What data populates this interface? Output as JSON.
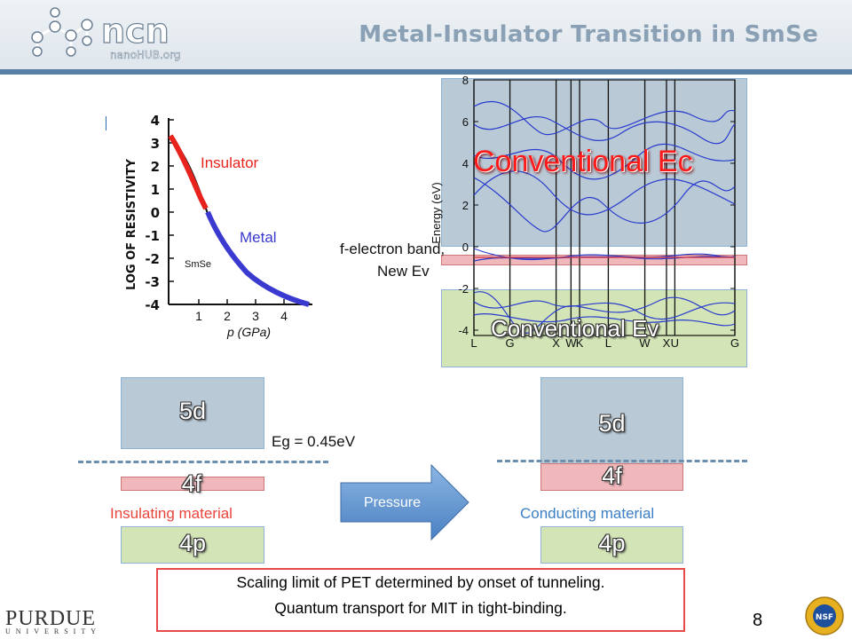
{
  "header": {
    "logo_text": "ncn",
    "logo_subtext": "nanoHUB.org",
    "title": "Metal-Insulator Transition in SmSe"
  },
  "resistivity_plot": {
    "ylabel": "LOG OF RESISTIVITY",
    "xlabel": "p (GPa)",
    "y_ticks": [
      "4",
      "3",
      "2",
      "1",
      "0",
      "-1",
      "-2",
      "-3",
      "-4"
    ],
    "x_ticks": [
      "1",
      "2",
      "3",
      "4"
    ],
    "label_insulator": "Insulator",
    "label_metal": "Metal",
    "label_material": "SmSe"
  },
  "band_plot": {
    "ylabel": "Energy (eV)",
    "y_ticks": [
      "8",
      "6",
      "4",
      "2",
      "0",
      "-2",
      "-4"
    ],
    "k_labels": [
      "L",
      "G",
      "X",
      "W",
      "K",
      "L",
      "W",
      "X",
      "U",
      "G"
    ],
    "label_ec": "Conventional Ec",
    "label_ev": "Conventional Ev",
    "label_fband_line1": "f-electron band,",
    "label_fband_line2": "New Ev"
  },
  "left_diagram": {
    "band_5d": "5d",
    "band_4f": "4f",
    "band_4p": "4p",
    "caption": "Insulating material",
    "gap_label": "Eg = 0.45eV"
  },
  "arrow": {
    "label": "Pressure"
  },
  "right_diagram": {
    "band_5d": "5d",
    "band_4f": "4f",
    "band_4p": "4p",
    "caption": "Conducting material"
  },
  "summary": {
    "line1": "Scaling limit of PET determined by onset of tunneling.",
    "line2": "Quantum transport for MIT in tight-binding."
  },
  "footer": {
    "purdue_line1": "PURDUE",
    "purdue_line2": "UNIVERSITY",
    "page_number": "8",
    "nsf_text": "NSF"
  },
  "colors": {
    "blue_box": "#b9c9d6",
    "red_box": "#f1b8bc",
    "green_box": "#d3e5b6",
    "insulating_text": "#e8453c",
    "conducting_text": "#3b7fc4",
    "arrow_blue": "#5d93cf"
  }
}
